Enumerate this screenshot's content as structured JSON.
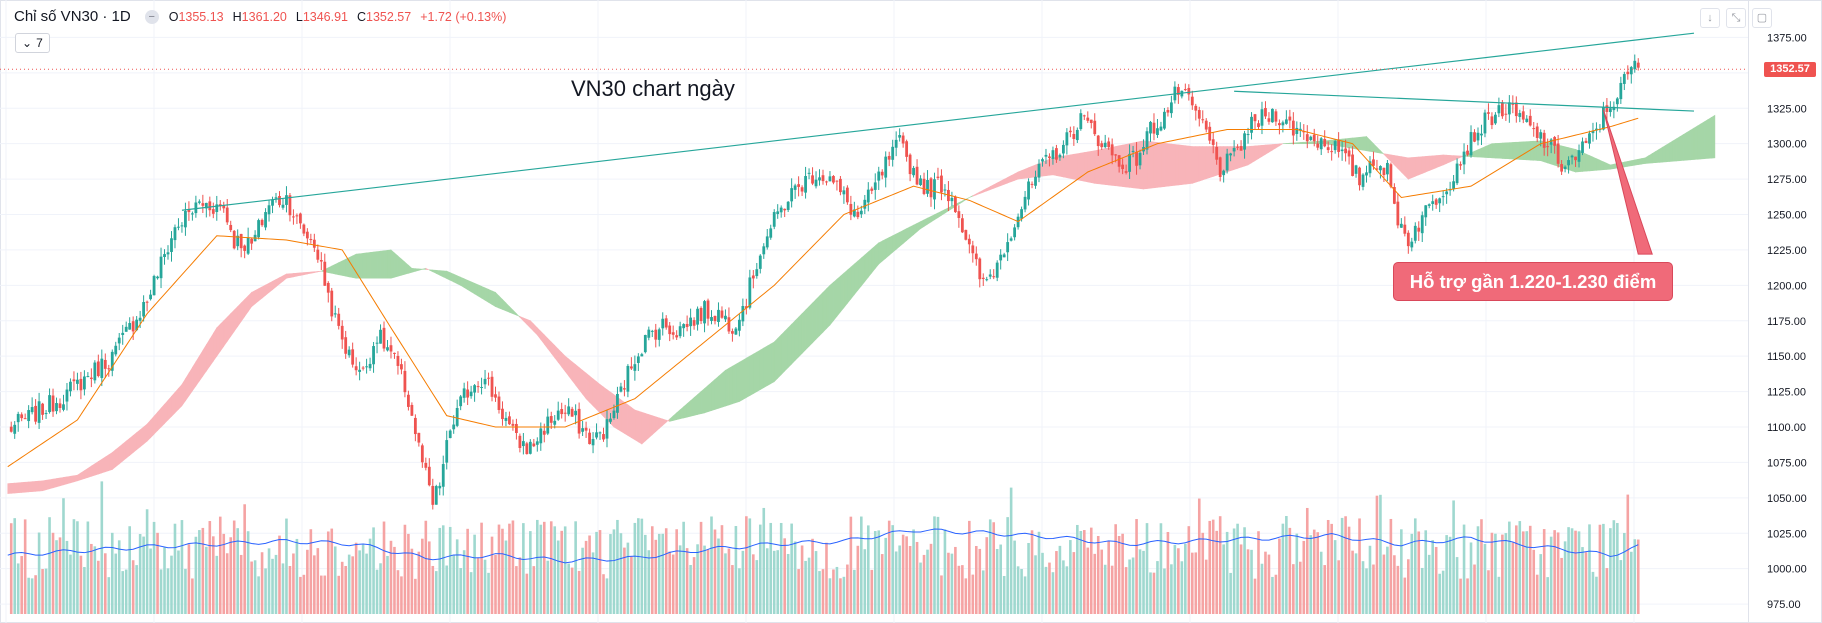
{
  "header": {
    "symbol": "Chỉ số VN30 · 1D",
    "open_label": "O",
    "open": "1355.13",
    "high_label": "H",
    "high": "1361.20",
    "low_label": "L",
    "low": "1346.91",
    "close_label": "C",
    "close": "1352.57",
    "change": "+1.72 (+0.13%)",
    "indicator_count": "7"
  },
  "annotations": {
    "title": "VN30 chart ngày",
    "support_callout": "Hỗ trợ gần 1.220-1.230 điểm"
  },
  "price_tag": "1352.57",
  "colors": {
    "up": "#26a69a",
    "down": "#ef5350",
    "up_volume": "#9fd8cf",
    "down_volume": "#f5a3a3",
    "cloud_bull": "#a5d6a7",
    "cloud_bear": "#f8b4b9",
    "ma": "#f57c00",
    "volume_ma": "#2962ff",
    "trendline": "#26a69a",
    "callout": "#f06a79"
  },
  "chart_data": {
    "type": "candlestick",
    "timeframe": "1D",
    "title": "VN30 chart ngày",
    "y_axis": {
      "range": [
        968,
        1388
      ],
      "ticks": [
        "1375.00",
        "1350.00",
        "1325.00",
        "1300.00",
        "1275.00",
        "1250.00",
        "1225.00",
        "1200.00",
        "1175.00",
        "1150.00",
        "1125.00",
        "1100.00",
        "1075.00",
        "1050.00",
        "1025.00",
        "1000.00",
        "975.00"
      ],
      "last_price": 1352.57
    },
    "close_path": [
      [
        0,
        1098
      ],
      [
        15,
        1120
      ],
      [
        30,
        1150
      ],
      [
        40,
        1190
      ],
      [
        48,
        1240
      ],
      [
        55,
        1258
      ],
      [
        62,
        1255
      ],
      [
        65,
        1232
      ],
      [
        70,
        1228
      ],
      [
        75,
        1258
      ],
      [
        80,
        1262
      ],
      [
        84,
        1240
      ],
      [
        88,
        1230
      ],
      [
        90,
        1212
      ],
      [
        94,
        1175
      ],
      [
        98,
        1150
      ],
      [
        102,
        1138
      ],
      [
        106,
        1165
      ],
      [
        110,
        1152
      ],
      [
        114,
        1128
      ],
      [
        116,
        1108
      ],
      [
        118,
        1085
      ],
      [
        120,
        1065
      ],
      [
        122,
        1045
      ],
      [
        124,
        1060
      ],
      [
        127,
        1098
      ],
      [
        131,
        1122
      ],
      [
        135,
        1135
      ],
      [
        138,
        1130
      ],
      [
        142,
        1110
      ],
      [
        146,
        1090
      ],
      [
        150,
        1085
      ],
      [
        154,
        1100
      ],
      [
        158,
        1110
      ],
      [
        162,
        1108
      ],
      [
        165,
        1098
      ],
      [
        168,
        1090
      ],
      [
        172,
        1100
      ],
      [
        176,
        1125
      ],
      [
        180,
        1150
      ],
      [
        184,
        1165
      ],
      [
        188,
        1172
      ],
      [
        192,
        1168
      ],
      [
        196,
        1175
      ],
      [
        200,
        1182
      ],
      [
        204,
        1180
      ],
      [
        208,
        1172
      ],
      [
        212,
        1190
      ],
      [
        216,
        1225
      ],
      [
        220,
        1245
      ],
      [
        224,
        1262
      ],
      [
        228,
        1272
      ],
      [
        232,
        1280
      ],
      [
        236,
        1275
      ],
      [
        240,
        1262
      ],
      [
        244,
        1248
      ],
      [
        248,
        1265
      ],
      [
        252,
        1285
      ],
      [
        256,
        1300
      ],
      [
        260,
        1280
      ],
      [
        264,
        1268
      ],
      [
        268,
        1272
      ],
      [
        272,
        1258
      ],
      [
        276,
        1225
      ],
      [
        280,
        1200
      ],
      [
        284,
        1215
      ],
      [
        288,
        1240
      ],
      [
        292,
        1262
      ],
      [
        296,
        1280
      ],
      [
        300,
        1292
      ],
      [
        304,
        1302
      ],
      [
        308,
        1318
      ],
      [
        312,
        1308
      ],
      [
        316,
        1295
      ],
      [
        320,
        1285
      ],
      [
        324,
        1290
      ],
      [
        328,
        1310
      ],
      [
        332,
        1320
      ],
      [
        336,
        1338
      ],
      [
        340,
        1325
      ],
      [
        344,
        1308
      ],
      [
        348,
        1282
      ],
      [
        352,
        1290
      ],
      [
        356,
        1310
      ],
      [
        360,
        1318
      ],
      [
        364,
        1322
      ],
      [
        368,
        1312
      ],
      [
        372,
        1308
      ],
      [
        376,
        1302
      ],
      [
        380,
        1300
      ],
      [
        384,
        1288
      ],
      [
        388,
        1275
      ],
      [
        392,
        1290
      ],
      [
        396,
        1280
      ],
      [
        398,
        1255
      ],
      [
        400,
        1242
      ],
      [
        402,
        1232
      ],
      [
        406,
        1248
      ],
      [
        410,
        1262
      ],
      [
        414,
        1275
      ],
      [
        418,
        1295
      ],
      [
        422,
        1310
      ],
      [
        426,
        1320
      ],
      [
        430,
        1325
      ],
      [
        434,
        1318
      ],
      [
        438,
        1308
      ],
      [
        442,
        1300
      ],
      [
        446,
        1285
      ],
      [
        450,
        1290
      ],
      [
        454,
        1302
      ],
      [
        458,
        1320
      ],
      [
        462,
        1335
      ],
      [
        466,
        1352
      ],
      [
        468,
        1357
      ]
    ],
    "moving_average": [
      [
        0,
        1072
      ],
      [
        20,
        1105
      ],
      [
        40,
        1180
      ],
      [
        60,
        1235
      ],
      [
        80,
        1232
      ],
      [
        96,
        1225
      ],
      [
        110,
        1170
      ],
      [
        126,
        1108
      ],
      [
        140,
        1100
      ],
      [
        160,
        1100
      ],
      [
        180,
        1120
      ],
      [
        200,
        1160
      ],
      [
        220,
        1200
      ],
      [
        240,
        1250
      ],
      [
        260,
        1270
      ],
      [
        276,
        1260
      ],
      [
        290,
        1245
      ],
      [
        310,
        1280
      ],
      [
        330,
        1300
      ],
      [
        350,
        1310
      ],
      [
        370,
        1310
      ],
      [
        386,
        1300
      ],
      [
        400,
        1262
      ],
      [
        420,
        1270
      ],
      [
        440,
        1300
      ],
      [
        460,
        1312
      ],
      [
        468,
        1318
      ]
    ],
    "ichimoku_cloud": {
      "span_a": [
        [
          0,
          1053
        ],
        [
          10,
          1055
        ],
        [
          20,
          1062
        ],
        [
          30,
          1070
        ],
        [
          40,
          1090
        ],
        [
          50,
          1115
        ],
        [
          60,
          1150
        ],
        [
          70,
          1185
        ],
        [
          80,
          1205
        ],
        [
          90,
          1210
        ],
        [
          100,
          1222
        ],
        [
          110,
          1225
        ],
        [
          116,
          1212
        ],
        [
          126,
          1210
        ],
        [
          140,
          1195
        ],
        [
          152,
          1165
        ],
        [
          166,
          1120
        ],
        [
          174,
          1100
        ],
        [
          182,
          1088
        ],
        [
          192,
          1110
        ],
        [
          206,
          1140
        ],
        [
          220,
          1160
        ],
        [
          236,
          1200
        ],
        [
          250,
          1230
        ],
        [
          262,
          1245
        ],
        [
          276,
          1262
        ],
        [
          290,
          1275
        ],
        [
          300,
          1278
        ],
        [
          312,
          1272
        ],
        [
          326,
          1268
        ],
        [
          340,
          1272
        ],
        [
          356,
          1285
        ],
        [
          366,
          1300
        ],
        [
          378,
          1302
        ],
        [
          390,
          1305
        ],
        [
          402,
          1275
        ],
        [
          412,
          1285
        ],
        [
          426,
          1300
        ],
        [
          440,
          1302
        ],
        [
          450,
          1296
        ],
        [
          460,
          1285
        ],
        [
          470,
          1290
        ],
        [
          480,
          1305
        ],
        [
          490,
          1320
        ]
      ],
      "span_b": [
        [
          0,
          1060
        ],
        [
          10,
          1062
        ],
        [
          20,
          1066
        ],
        [
          30,
          1082
        ],
        [
          40,
          1102
        ],
        [
          50,
          1130
        ],
        [
          60,
          1170
        ],
        [
          70,
          1195
        ],
        [
          80,
          1208
        ],
        [
          90,
          1210
        ],
        [
          100,
          1205
        ],
        [
          110,
          1205
        ],
        [
          120,
          1212
        ],
        [
          130,
          1200
        ],
        [
          140,
          1185
        ],
        [
          150,
          1175
        ],
        [
          160,
          1150
        ],
        [
          170,
          1130
        ],
        [
          180,
          1112
        ],
        [
          190,
          1104
        ],
        [
          200,
          1110
        ],
        [
          210,
          1118
        ],
        [
          220,
          1132
        ],
        [
          236,
          1172
        ],
        [
          250,
          1215
        ],
        [
          262,
          1240
        ],
        [
          276,
          1262
        ],
        [
          290,
          1280
        ],
        [
          300,
          1290
        ],
        [
          312,
          1295
        ],
        [
          326,
          1302
        ],
        [
          340,
          1298
        ],
        [
          356,
          1298
        ],
        [
          366,
          1300
        ],
        [
          378,
          1300
        ],
        [
          390,
          1295
        ],
        [
          402,
          1290
        ],
        [
          412,
          1292
        ],
        [
          426,
          1290
        ],
        [
          440,
          1288
        ],
        [
          450,
          1280
        ],
        [
          460,
          1282
        ],
        [
          470,
          1286
        ],
        [
          480,
          1288
        ],
        [
          490,
          1290
        ]
      ]
    },
    "volume": {
      "range": [
        0,
        100
      ],
      "average_path": [
        [
          0,
          42
        ],
        [
          40,
          48
        ],
        [
          80,
          52
        ],
        [
          100,
          50
        ],
        [
          120,
          40
        ],
        [
          140,
          42
        ],
        [
          160,
          38
        ],
        [
          180,
          40
        ],
        [
          200,
          46
        ],
        [
          220,
          50
        ],
        [
          240,
          52
        ],
        [
          260,
          60
        ],
        [
          280,
          58
        ],
        [
          300,
          55
        ],
        [
          320,
          50
        ],
        [
          340,
          52
        ],
        [
          360,
          54
        ],
        [
          380,
          56
        ],
        [
          400,
          50
        ],
        [
          420,
          54
        ],
        [
          440,
          48
        ],
        [
          460,
          42
        ],
        [
          468,
          48
        ]
      ]
    },
    "trendlines": [
      {
        "name": "rising-resistance",
        "from": [
          50,
          1253
        ],
        "to": [
          484,
          1378
        ]
      },
      {
        "name": "horizontal-resistance",
        "from": [
          352,
          1337
        ],
        "to": [
          484,
          1323
        ]
      },
      {
        "name": "callout-pointer",
        "from": [
          458,
          1324
        ],
        "to": [
          470,
          1222
        ]
      }
    ]
  }
}
